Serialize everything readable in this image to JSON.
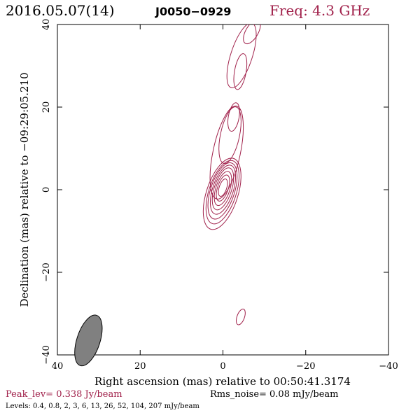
{
  "header": {
    "date": "2016.05.07(14)",
    "source": "J0050−0929",
    "freq": "Freq: 4.3 GHz"
  },
  "footer": {
    "peak": "Peak_lev=  0.338 Jy/beam",
    "rms": "Rms_noise= 0.08 mJy/beam",
    "levels": "Levels: 0.4, 0.8,   2,   3,   6,  13,  26,  52, 104, 207 mJy/beam"
  },
  "colors": {
    "contour": "#a0204a",
    "title_accent": "#a0204a",
    "beam_fill": "#808080",
    "frame": "#000000"
  },
  "chart_data": {
    "type": "contour",
    "xlabel": "Right ascension (mas) relative to 00:50:41.3174",
    "ylabel": "Declination (mas) relative to −09:29:05.210",
    "xlim": [
      40,
      -40
    ],
    "ylim": [
      -40,
      40
    ],
    "x_ticks": [
      40,
      20,
      0,
      -20,
      -40
    ],
    "y_ticks": [
      -40,
      -20,
      0,
      20,
      40
    ],
    "x_tick_labels": [
      "40",
      "20",
      "0",
      "−20",
      "−40"
    ],
    "y_tick_labels": [
      "−40",
      "−20",
      "0",
      "20",
      "40"
    ],
    "levels_mJy": [
      0.4,
      0.8,
      2,
      3,
      6,
      13,
      26,
      52,
      104,
      207
    ],
    "peak_Jy": 0.338,
    "rms_mJy": 0.08,
    "beam": {
      "x": 32.5,
      "y": -36.5,
      "major": 6.4,
      "minor": 2.8,
      "pa_deg": 18
    },
    "core": {
      "x": 0,
      "y": 0.5
    },
    "contour_groups": [
      {
        "name": "core",
        "rings": [
          {
            "cx": 0.2,
            "cy": -1.0,
            "rx": 3.8,
            "ry": 9.0,
            "rot": 18
          },
          {
            "cx": 0.1,
            "cy": -0.6,
            "rx": 3.3,
            "ry": 8.0,
            "rot": 18
          },
          {
            "cx": 0.1,
            "cy": -0.3,
            "rx": 2.9,
            "ry": 7.1,
            "rot": 18
          },
          {
            "cx": 0.0,
            "cy": 0.0,
            "rx": 2.5,
            "ry": 6.2,
            "rot": 18
          },
          {
            "cx": 0.0,
            "cy": 0.2,
            "rx": 2.1,
            "ry": 5.3,
            "rot": 18
          },
          {
            "cx": 0.0,
            "cy": 0.3,
            "rx": 1.7,
            "ry": 4.3,
            "rot": 18
          },
          {
            "cx": 0.0,
            "cy": 0.4,
            "rx": 1.3,
            "ry": 3.3,
            "rot": 18
          },
          {
            "cx": 0.0,
            "cy": 0.5,
            "rx": 0.9,
            "ry": 2.2,
            "rot": 18
          }
        ]
      },
      {
        "name": "inner-jet",
        "rings": [
          {
            "cx": -0.9,
            "cy": 9.0,
            "rx": 3.3,
            "ry": 11.5,
            "rot": 12
          },
          {
            "cx": -1.7,
            "cy": 13.2,
            "rx": 2.3,
            "ry": 7.0,
            "rot": 12
          },
          {
            "cx": -2.6,
            "cy": 17.6,
            "rx": 1.3,
            "ry": 3.5,
            "rot": 10
          }
        ]
      },
      {
        "name": "outer-jet",
        "rings": [
          {
            "cx": -4.5,
            "cy": 32.5,
            "rx": 2.6,
            "ry": 8.2,
            "rot": 18
          },
          {
            "cx": -4.2,
            "cy": 28.6,
            "rx": 1.4,
            "ry": 4.4,
            "rot": 10
          },
          {
            "cx": -7.0,
            "cy": 38.2,
            "rx": 1.5,
            "ry": 3.2,
            "rot": 30
          }
        ]
      },
      {
        "name": "knot",
        "rings": [
          {
            "cx": -4.3,
            "cy": -30.8,
            "rx": 0.9,
            "ry": 2.0,
            "rot": 20
          }
        ]
      }
    ]
  }
}
